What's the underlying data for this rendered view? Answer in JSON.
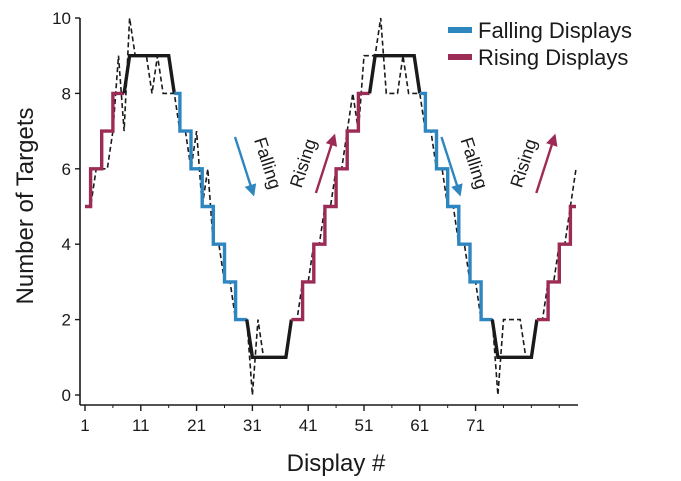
{
  "chart_data": {
    "type": "line",
    "xlabel": "Display #",
    "ylabel": "Number of Targets",
    "xlim": [
      0,
      100
    ],
    "ylim": [
      0,
      10
    ],
    "xticks": [
      1,
      11,
      21,
      31,
      41,
      51,
      61,
      71
    ],
    "yticks": [
      0,
      2,
      4,
      6,
      8,
      10
    ],
    "ytick_labels": [
      "0",
      "2",
      "4",
      "6",
      "8",
      "10"
    ],
    "grid": false,
    "legend": "top-right",
    "legend_entries": [
      {
        "label": "Falling Displays",
        "color": "#2e86c1"
      },
      {
        "label": "Rising Displays",
        "color": "#9c2b55"
      }
    ],
    "colors": {
      "falling": "#2e86c1",
      "rising": "#9c2b55",
      "neutral": "#1a1a1a",
      "dashed": "#1a1a1a"
    },
    "annotations": [
      {
        "text": "Falling",
        "direction": "down",
        "x": 29.5,
        "y": 6.1,
        "color": "#2e86c1"
      },
      {
        "text": "Rising",
        "direction": "up",
        "x": 44.0,
        "y": 6.1,
        "color": "#9c2b55"
      },
      {
        "text": "Falling",
        "direction": "down",
        "x": 66.5,
        "y": 6.1,
        "color": "#2e86c1"
      },
      {
        "text": "Rising",
        "direction": "up",
        "x": 83.5,
        "y": 6.1,
        "color": "#9c2b55"
      }
    ],
    "series": [
      {
        "style": "solid-staircase",
        "segments": [
          {
            "kind": "rising",
            "points": [
              [
                1,
                5
              ],
              [
                2,
                5
              ],
              [
                2,
                6
              ],
              [
                4,
                6
              ],
              [
                4,
                7
              ],
              [
                6,
                7
              ],
              [
                6,
                8
              ],
              [
                8,
                8
              ]
            ]
          },
          {
            "kind": "neutral",
            "points": [
              [
                8,
                8
              ],
              [
                9,
                9
              ],
              [
                16,
                9
              ],
              [
                17,
                8
              ]
            ]
          },
          {
            "kind": "falling",
            "points": [
              [
                17,
                8
              ],
              [
                18,
                8
              ],
              [
                18,
                7
              ],
              [
                20,
                7
              ],
              [
                20,
                6
              ],
              [
                22,
                6
              ],
              [
                22,
                5
              ],
              [
                24,
                5
              ],
              [
                24,
                4
              ],
              [
                26,
                4
              ],
              [
                26,
                3
              ],
              [
                28,
                3
              ],
              [
                28,
                2
              ],
              [
                30,
                2
              ]
            ]
          },
          {
            "kind": "neutral",
            "points": [
              [
                30,
                2
              ],
              [
                31,
                1
              ],
              [
                37,
                1
              ],
              [
                38,
                2
              ]
            ]
          },
          {
            "kind": "rising",
            "points": [
              [
                38,
                2
              ],
              [
                40,
                2
              ],
              [
                40,
                3
              ],
              [
                42,
                3
              ],
              [
                42,
                4
              ],
              [
                44,
                4
              ],
              [
                44,
                5
              ],
              [
                46,
                5
              ],
              [
                46,
                6
              ],
              [
                48,
                6
              ],
              [
                48,
                7
              ],
              [
                50,
                7
              ],
              [
                50,
                8
              ],
              [
                52,
                8
              ]
            ]
          },
          {
            "kind": "neutral",
            "points": [
              [
                52,
                8
              ],
              [
                53,
                9
              ],
              [
                60,
                9
              ],
              [
                61,
                8
              ]
            ]
          },
          {
            "kind": "falling",
            "points": [
              [
                61,
                8
              ],
              [
                62,
                8
              ],
              [
                62,
                7
              ],
              [
                64,
                7
              ],
              [
                64,
                6
              ],
              [
                66,
                6
              ],
              [
                66,
                5
              ],
              [
                68,
                5
              ],
              [
                68,
                4
              ],
              [
                70,
                4
              ],
              [
                70,
                3
              ],
              [
                72,
                3
              ],
              [
                72,
                2
              ],
              [
                74,
                2
              ]
            ]
          },
          {
            "kind": "neutral",
            "points": [
              [
                74,
                2
              ],
              [
                75,
                1
              ],
              [
                81,
                1
              ],
              [
                82,
                2
              ]
            ]
          },
          {
            "kind": "rising",
            "points": [
              [
                82,
                2
              ],
              [
                84,
                2
              ],
              [
                84,
                3
              ],
              [
                86,
                3
              ],
              [
                86,
                4
              ],
              [
                88,
                4
              ],
              [
                88,
                5
              ],
              [
                89,
                5
              ]
            ]
          }
        ]
      },
      {
        "style": "dashed",
        "points": [
          [
            1,
            5
          ],
          [
            2,
            5
          ],
          [
            3,
            6
          ],
          [
            4,
            6
          ],
          [
            5,
            6
          ],
          [
            6,
            7
          ],
          [
            7,
            9
          ],
          [
            8,
            7
          ],
          [
            9,
            10
          ],
          [
            10,
            9
          ],
          [
            11,
            9
          ],
          [
            12,
            9
          ],
          [
            13,
            8
          ],
          [
            14,
            9
          ],
          [
            15,
            8
          ],
          [
            16,
            8
          ],
          [
            17,
            8
          ],
          [
            18,
            7
          ],
          [
            19,
            7
          ],
          [
            20,
            6
          ],
          [
            21,
            7
          ],
          [
            22,
            5
          ],
          [
            23,
            6
          ],
          [
            24,
            4
          ],
          [
            25,
            4
          ],
          [
            26,
            3
          ],
          [
            27,
            3
          ],
          [
            28,
            2
          ],
          [
            29,
            2
          ],
          [
            30,
            2
          ],
          [
            31,
            0
          ],
          [
            32,
            2
          ],
          [
            33,
            1
          ],
          [
            34,
            1
          ],
          [
            35,
            1
          ],
          [
            36,
            1
          ],
          [
            37,
            1
          ],
          [
            38,
            2
          ],
          [
            39,
            2
          ],
          [
            40,
            3
          ],
          [
            41,
            3
          ],
          [
            42,
            4
          ],
          [
            43,
            4
          ],
          [
            44,
            5
          ],
          [
            45,
            5
          ],
          [
            46,
            6
          ],
          [
            47,
            6
          ],
          [
            48,
            7
          ],
          [
            49,
            8
          ],
          [
            50,
            7
          ],
          [
            51,
            9
          ],
          [
            52,
            9
          ],
          [
            53,
            9
          ],
          [
            54,
            10
          ],
          [
            55,
            8
          ],
          [
            56,
            8
          ],
          [
            57,
            8
          ],
          [
            58,
            9
          ],
          [
            59,
            8
          ],
          [
            60,
            8
          ],
          [
            61,
            8
          ],
          [
            62,
            7
          ],
          [
            63,
            7
          ],
          [
            64,
            6
          ],
          [
            65,
            6
          ],
          [
            66,
            5
          ],
          [
            67,
            5
          ],
          [
            68,
            4
          ],
          [
            69,
            4
          ],
          [
            70,
            3
          ],
          [
            71,
            3
          ],
          [
            72,
            2
          ],
          [
            73,
            2
          ],
          [
            74,
            2
          ],
          [
            75,
            0
          ],
          [
            76,
            2
          ],
          [
            77,
            2
          ],
          [
            78,
            2
          ],
          [
            79,
            2
          ],
          [
            80,
            1
          ],
          [
            81,
            1
          ],
          [
            82,
            2
          ],
          [
            83,
            2
          ],
          [
            84,
            3
          ],
          [
            85,
            3
          ],
          [
            86,
            4
          ],
          [
            87,
            4
          ],
          [
            88,
            5
          ],
          [
            89,
            6
          ]
        ]
      }
    ]
  }
}
